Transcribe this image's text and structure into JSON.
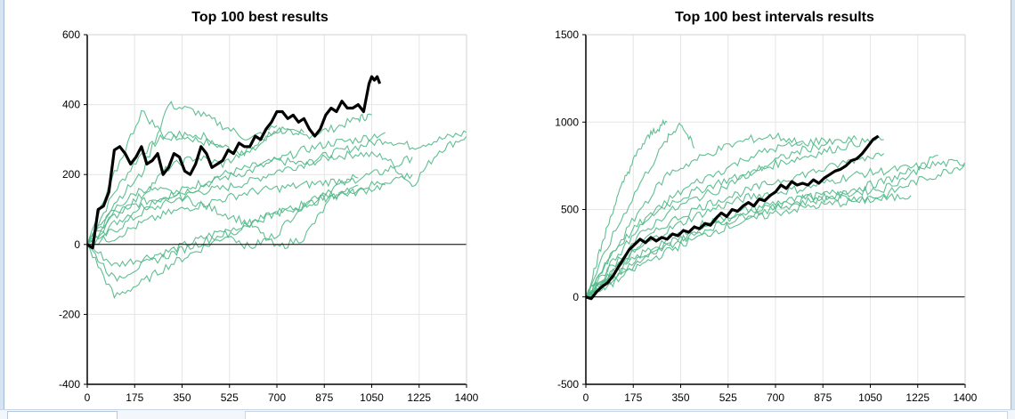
{
  "colors": {
    "thin_series": "#4fb886",
    "best_series": "#000000",
    "grid": "#e6e6e6",
    "frame": "#d6e4f2"
  },
  "chart_data": [
    {
      "type": "line",
      "title": "Top 100 best results",
      "xlabel": "",
      "ylabel": "",
      "xlim": [
        0,
        1400
      ],
      "ylim": [
        -400,
        600
      ],
      "x_ticks": [
        "0",
        "175",
        "350",
        "525",
        "700",
        "875",
        "1050",
        "1225",
        "1400"
      ],
      "y_ticks": [
        "-400",
        "-200",
        "0",
        "200",
        "400",
        "600"
      ],
      "grid": true,
      "zero_line": true,
      "thin_series_count": 100,
      "thin_series": [
        {
          "x": [
            0,
            100,
            200,
            300,
            400,
            500,
            600,
            700,
            800,
            900,
            1000,
            1050
          ],
          "y": [
            0,
            150,
            260,
            320,
            300,
            280,
            260,
            330,
            310,
            330,
            360,
            370
          ]
        },
        {
          "x": [
            0,
            100,
            200,
            300,
            400,
            500,
            600,
            700,
            800,
            900,
            1000,
            1100,
            1200,
            1300,
            1400
          ],
          "y": [
            0,
            60,
            110,
            140,
            170,
            200,
            220,
            240,
            230,
            250,
            260,
            250,
            170,
            270,
            310
          ]
        },
        {
          "x": [
            0,
            100,
            200,
            300,
            400,
            500,
            600,
            700,
            800,
            900,
            1000,
            1100,
            1200,
            1300,
            1400
          ],
          "y": [
            0,
            40,
            90,
            120,
            150,
            160,
            180,
            210,
            230,
            260,
            280,
            300,
            280,
            300,
            320
          ]
        },
        {
          "x": [
            0,
            100,
            200,
            300,
            400,
            500,
            600,
            700,
            800,
            900,
            1000,
            1100,
            1200
          ],
          "y": [
            0,
            -60,
            -40,
            -20,
            10,
            40,
            -10,
            30,
            120,
            160,
            190,
            210,
            250
          ]
        },
        {
          "x": [
            0,
            100,
            200,
            300,
            400,
            500,
            600,
            700,
            800,
            900,
            1000,
            1100
          ],
          "y": [
            0,
            90,
            120,
            140,
            160,
            190,
            210,
            240,
            270,
            290,
            300,
            320
          ]
        },
        {
          "x": [
            0,
            100,
            200,
            300,
            400,
            500,
            600,
            700
          ],
          "y": [
            0,
            120,
            200,
            400,
            380,
            340,
            300,
            340
          ]
        },
        {
          "x": [
            0,
            100,
            200,
            300,
            400,
            500,
            600,
            700,
            800,
            900,
            1000,
            1100
          ],
          "y": [
            0,
            -150,
            -110,
            -60,
            -20,
            20,
            60,
            90,
            110,
            140,
            150,
            170
          ]
        },
        {
          "x": [
            0,
            100,
            200,
            300,
            400,
            500,
            600,
            700,
            800,
            900,
            1000
          ],
          "y": [
            0,
            100,
            160,
            150,
            120,
            90,
            60,
            -10,
            20,
            130,
            170
          ]
        },
        {
          "x": [
            0,
            100,
            200,
            300,
            400,
            500,
            600,
            700,
            800
          ],
          "y": [
            0,
            80,
            140,
            220,
            250,
            230,
            270,
            330,
            320
          ]
        },
        {
          "x": [
            0,
            100,
            200,
            300,
            400,
            500,
            600,
            700,
            800,
            900,
            1000
          ],
          "y": [
            0,
            20,
            60,
            90,
            110,
            130,
            150,
            160,
            170,
            180,
            190
          ]
        },
        {
          "x": [
            0,
            100,
            200,
            300,
            400,
            500
          ],
          "y": [
            0,
            200,
            380,
            300,
            320,
            280
          ]
        },
        {
          "x": [
            0,
            100,
            200,
            300,
            400,
            500,
            600,
            700,
            800,
            900,
            1000,
            1100,
            1200
          ],
          "y": [
            0,
            -100,
            -60,
            -30,
            0,
            30,
            60,
            90,
            110,
            140,
            160,
            180,
            200
          ]
        }
      ],
      "best_series": {
        "x": [
          0,
          20,
          40,
          60,
          80,
          100,
          120,
          140,
          160,
          180,
          200,
          220,
          240,
          260,
          280,
          300,
          320,
          340,
          360,
          380,
          400,
          420,
          440,
          460,
          480,
          500,
          520,
          540,
          560,
          580,
          600,
          620,
          640,
          660,
          680,
          700,
          720,
          740,
          760,
          780,
          800,
          820,
          840,
          860,
          880,
          900,
          920,
          940,
          960,
          980,
          1000,
          1020,
          1040,
          1050,
          1060,
          1070,
          1080
        ],
        "y": [
          0,
          -10,
          100,
          110,
          150,
          270,
          280,
          260,
          230,
          250,
          280,
          230,
          240,
          260,
          200,
          220,
          260,
          250,
          210,
          200,
          230,
          280,
          260,
          220,
          230,
          240,
          270,
          260,
          290,
          280,
          280,
          310,
          300,
          330,
          350,
          380,
          380,
          360,
          370,
          350,
          360,
          330,
          310,
          330,
          370,
          390,
          380,
          410,
          390,
          390,
          400,
          380,
          460,
          480,
          470,
          480,
          460
        ]
      }
    },
    {
      "type": "line",
      "title": "Top 100 best intervals results",
      "xlabel": "",
      "ylabel": "",
      "xlim": [
        0,
        1400
      ],
      "ylim": [
        -500,
        1500
      ],
      "x_ticks": [
        "0",
        "175",
        "350",
        "525",
        "700",
        "875",
        "1050",
        "1225",
        "1400"
      ],
      "y_ticks": [
        "-500",
        "0",
        "500",
        "1000",
        "1500"
      ],
      "grid": true,
      "zero_line": true,
      "thin_series_count": 100,
      "thin_series": [
        {
          "x": [
            0,
            100,
            200,
            300,
            350,
            400
          ],
          "y": [
            0,
            350,
            650,
            900,
            1000,
            850
          ]
        },
        {
          "x": [
            0,
            100,
            200,
            300,
            400,
            500,
            600,
            700,
            800,
            900,
            1000,
            1100
          ],
          "y": [
            0,
            260,
            420,
            530,
            600,
            660,
            700,
            760,
            800,
            840,
            880,
            900
          ]
        },
        {
          "x": [
            0,
            100,
            200,
            300,
            400,
            500,
            600,
            700,
            800,
            900,
            1000,
            1100,
            1200,
            1300,
            1400
          ],
          "y": [
            0,
            150,
            280,
            380,
            460,
            520,
            570,
            600,
            620,
            660,
            700,
            720,
            740,
            760,
            770
          ]
        },
        {
          "x": [
            0,
            100,
            200,
            300,
            400,
            500,
            600,
            700,
            800,
            900,
            1000,
            1100,
            1200,
            1300,
            1400
          ],
          "y": [
            0,
            120,
            240,
            330,
            400,
            450,
            500,
            540,
            560,
            580,
            560,
            580,
            650,
            700,
            760
          ]
        },
        {
          "x": [
            0,
            100,
            200,
            300,
            400,
            500,
            600,
            700,
            800,
            900,
            1000,
            1100,
            1200,
            1300
          ],
          "y": [
            0,
            100,
            200,
            290,
            360,
            420,
            470,
            510,
            540,
            570,
            600,
            620,
            700,
            810
          ]
        },
        {
          "x": [
            0,
            100,
            200,
            300,
            400,
            500,
            600,
            700,
            800,
            900,
            1000,
            1100,
            1200
          ],
          "y": [
            0,
            120,
            220,
            300,
            370,
            430,
            480,
            520,
            560,
            590,
            620,
            660,
            720
          ]
        },
        {
          "x": [
            0,
            100,
            200,
            300,
            400,
            500,
            600,
            700,
            800,
            900,
            1000
          ],
          "y": [
            0,
            180,
            350,
            480,
            560,
            620,
            700,
            780,
            840,
            880,
            900
          ]
        },
        {
          "x": [
            0,
            100,
            200,
            300,
            400,
            500,
            600,
            700,
            800
          ],
          "y": [
            0,
            250,
            500,
            700,
            780,
            850,
            900,
            920,
            880
          ]
        },
        {
          "x": [
            0,
            100,
            200,
            300,
            400,
            500,
            600,
            700,
            800,
            900,
            1000,
            1100,
            1200
          ],
          "y": [
            0,
            80,
            180,
            260,
            330,
            390,
            440,
            480,
            510,
            530,
            550,
            560,
            580
          ]
        },
        {
          "x": [
            0,
            100,
            200,
            300,
            400,
            500,
            600,
            700,
            800,
            900
          ],
          "y": [
            0,
            200,
            400,
            550,
            650,
            720,
            800,
            850,
            880,
            900
          ]
        },
        {
          "x": [
            0,
            100,
            200,
            300,
            400,
            500,
            600,
            700,
            800,
            900,
            1000,
            1100
          ],
          "y": [
            0,
            140,
            300,
            420,
            500,
            560,
            610,
            660,
            700,
            740,
            790,
            820
          ]
        },
        {
          "x": [
            0,
            50,
            100,
            150,
            200,
            250,
            300
          ],
          "y": [
            0,
            250,
            500,
            700,
            850,
            950,
            1000
          ]
        }
      ],
      "best_series": {
        "x": [
          0,
          20,
          40,
          60,
          80,
          100,
          120,
          140,
          160,
          180,
          200,
          220,
          240,
          260,
          280,
          300,
          320,
          340,
          360,
          380,
          400,
          420,
          440,
          460,
          480,
          500,
          520,
          540,
          560,
          580,
          600,
          620,
          640,
          660,
          680,
          700,
          720,
          740,
          760,
          780,
          800,
          820,
          840,
          860,
          880,
          900,
          920,
          940,
          960,
          980,
          1000,
          1020,
          1040,
          1060,
          1080
        ],
        "y": [
          0,
          -10,
          30,
          60,
          80,
          120,
          170,
          220,
          270,
          300,
          330,
          310,
          340,
          320,
          340,
          330,
          360,
          350,
          380,
          370,
          400,
          390,
          420,
          410,
          450,
          480,
          460,
          500,
          490,
          520,
          540,
          520,
          560,
          550,
          580,
          600,
          640,
          620,
          660,
          640,
          650,
          640,
          670,
          650,
          680,
          700,
          720,
          730,
          750,
          780,
          790,
          820,
          860,
          900,
          920
        ]
      }
    }
  ]
}
